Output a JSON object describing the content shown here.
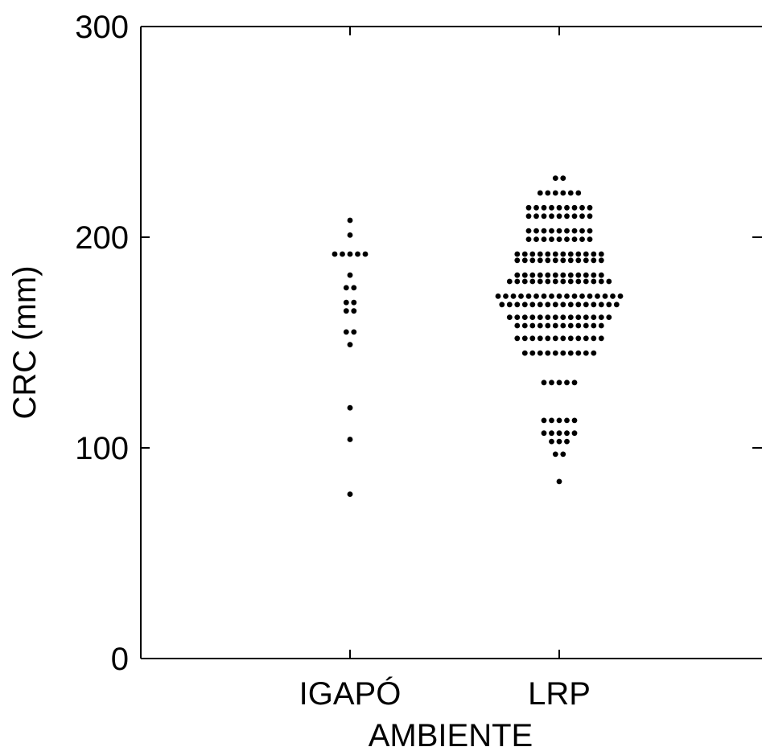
{
  "chart_data": {
    "type": "scatter",
    "subtype": "dot-plot",
    "title": "",
    "xlabel": "AMBIENTE",
    "ylabel": "CRC (mm)",
    "ylim": [
      0,
      300
    ],
    "yticks": [
      0,
      100,
      200,
      300
    ],
    "ytick_labels": [
      "0",
      "100",
      "200",
      "300"
    ],
    "categories": [
      "IGAPÓ",
      "LRP"
    ],
    "grid": false,
    "marker_color": "#000000",
    "rows": [
      {
        "category": "IGAPÓ",
        "y": 208,
        "n": 1
      },
      {
        "category": "IGAPÓ",
        "y": 201,
        "n": 1
      },
      {
        "category": "IGAPÓ",
        "y": 192,
        "n": 5
      },
      {
        "category": "IGAPÓ",
        "y": 182,
        "n": 1
      },
      {
        "category": "IGAPÓ",
        "y": 176,
        "n": 2
      },
      {
        "category": "IGAPÓ",
        "y": 169,
        "n": 2
      },
      {
        "category": "IGAPÓ",
        "y": 165,
        "n": 2
      },
      {
        "category": "IGAPÓ",
        "y": 155,
        "n": 2
      },
      {
        "category": "IGAPÓ",
        "y": 149,
        "n": 1
      },
      {
        "category": "IGAPÓ",
        "y": 119,
        "n": 1
      },
      {
        "category": "IGAPÓ",
        "y": 104,
        "n": 1
      },
      {
        "category": "IGAPÓ",
        "y": 78,
        "n": 1
      },
      {
        "category": "LRP",
        "y": 228,
        "n": 2
      },
      {
        "category": "LRP",
        "y": 221,
        "n": 6
      },
      {
        "category": "LRP",
        "y": 214,
        "n": 9
      },
      {
        "category": "LRP",
        "y": 210,
        "n": 9
      },
      {
        "category": "LRP",
        "y": 203,
        "n": 9
      },
      {
        "category": "LRP",
        "y": 199,
        "n": 9
      },
      {
        "category": "LRP",
        "y": 192,
        "n": 12
      },
      {
        "category": "LRP",
        "y": 189,
        "n": 12
      },
      {
        "category": "LRP",
        "y": 182,
        "n": 12
      },
      {
        "category": "LRP",
        "y": 179,
        "n": 14
      },
      {
        "category": "LRP",
        "y": 172,
        "n": 17
      },
      {
        "category": "LRP",
        "y": 168,
        "n": 16
      },
      {
        "category": "LRP",
        "y": 162,
        "n": 14
      },
      {
        "category": "LRP",
        "y": 158,
        "n": 12
      },
      {
        "category": "LRP",
        "y": 152,
        "n": 12
      },
      {
        "category": "LRP",
        "y": 145,
        "n": 10
      },
      {
        "category": "LRP",
        "y": 131,
        "n": 5
      },
      {
        "category": "LRP",
        "y": 113,
        "n": 5
      },
      {
        "category": "LRP",
        "y": 107,
        "n": 5
      },
      {
        "category": "LRP",
        "y": 103,
        "n": 3
      },
      {
        "category": "LRP",
        "y": 97,
        "n": 2
      },
      {
        "category": "LRP",
        "y": 84,
        "n": 1
      }
    ]
  }
}
